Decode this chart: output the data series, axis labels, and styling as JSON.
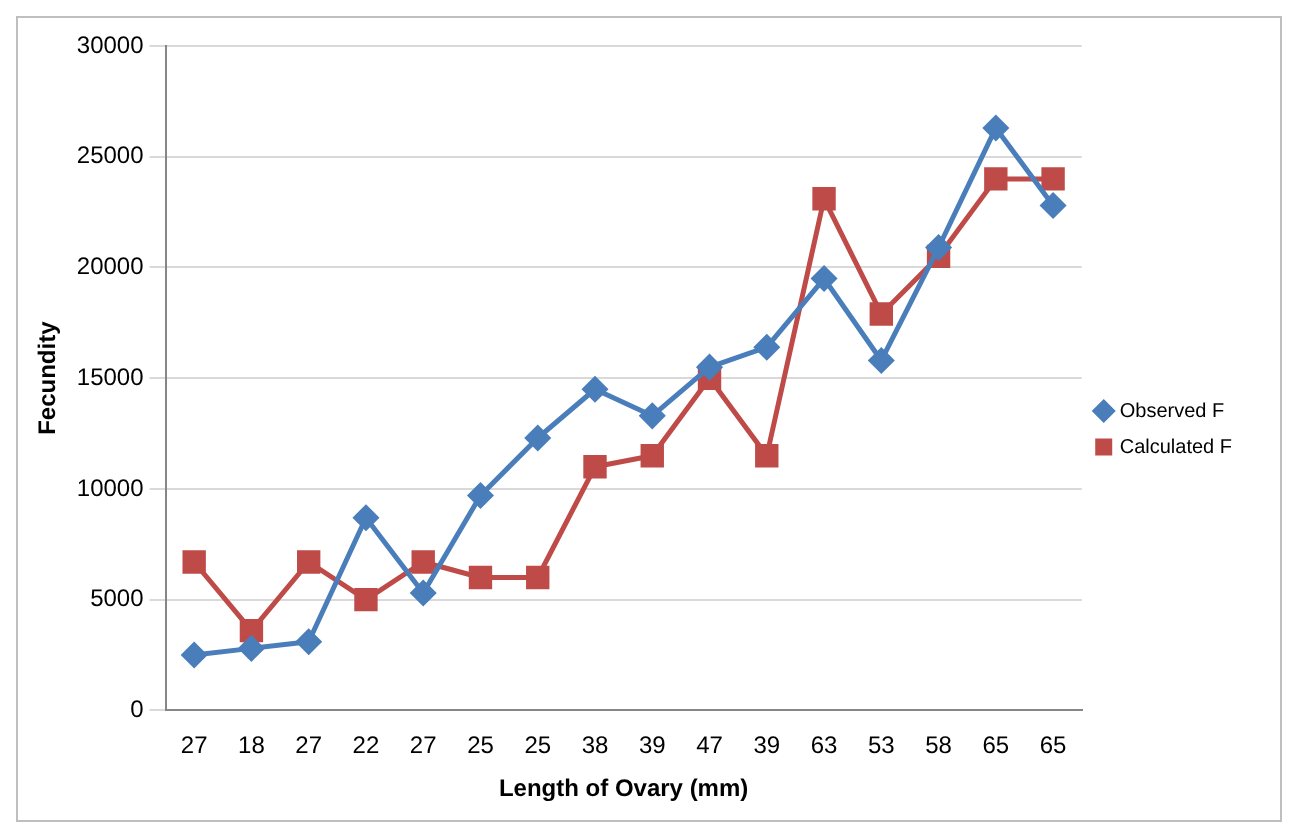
{
  "chart_data": {
    "type": "line",
    "xlabel": "Length of Ovary (mm)",
    "ylabel": "Fecundity",
    "categories": [
      "27",
      "18",
      "27",
      "22",
      "27",
      "25",
      "25",
      "38",
      "39",
      "47",
      "39",
      "63",
      "53",
      "58",
      "65",
      "65"
    ],
    "series": [
      {
        "name": "Observed F",
        "color": "#4a7ebb",
        "marker": "diamond",
        "values": [
          2500,
          2800,
          3100,
          8700,
          5300,
          9700,
          12300,
          14500,
          13300,
          15500,
          16400,
          19500,
          15800,
          20900,
          26300,
          22800
        ]
      },
      {
        "name": "Calculated F",
        "color": "#be4b48",
        "marker": "square",
        "values": [
          6700,
          3600,
          6700,
          5000,
          6700,
          6000,
          6000,
          11000,
          11500,
          15000,
          11500,
          23100,
          17900,
          20500,
          24000,
          24000
        ]
      }
    ],
    "ylim": [
      0,
      30000
    ],
    "yticks": [
      0,
      5000,
      10000,
      15000,
      20000,
      25000,
      30000
    ],
    "grid": "y",
    "legend": "right",
    "line_style": "solid"
  }
}
